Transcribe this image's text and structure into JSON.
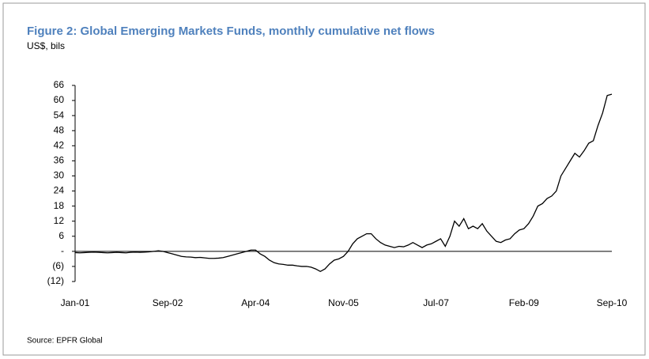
{
  "chart_data": {
    "type": "line",
    "title": "Figure 2: Global Emerging Markets Funds, monthly cumulative net flows",
    "subtitle": "US$, bils",
    "source": "Source: EPFR Global",
    "categories": [
      "Jan-01",
      null,
      null,
      null,
      null,
      null,
      null,
      null,
      null,
      null,
      null,
      null,
      null,
      null,
      null,
      null,
      null,
      null,
      null,
      null,
      "Sep-02",
      null,
      null,
      null,
      null,
      null,
      null,
      null,
      null,
      null,
      null,
      null,
      null,
      null,
      null,
      null,
      null,
      null,
      null,
      "Apr-04",
      null,
      null,
      null,
      null,
      null,
      null,
      null,
      null,
      null,
      null,
      null,
      null,
      null,
      null,
      null,
      null,
      null,
      null,
      "Nov-05",
      null,
      null,
      null,
      null,
      null,
      null,
      null,
      null,
      null,
      null,
      null,
      null,
      null,
      null,
      null,
      null,
      null,
      null,
      null,
      "Jul-07",
      null,
      null,
      null,
      null,
      null,
      null,
      null,
      null,
      null,
      null,
      null,
      null,
      null,
      null,
      null,
      null,
      null,
      null,
      "Feb-09",
      null,
      null,
      null,
      null,
      null,
      null,
      null,
      null,
      null,
      null,
      null,
      null,
      null,
      null,
      null,
      null,
      null,
      null,
      "Sep-10"
    ],
    "series": [
      {
        "name": "Cumulative net flows",
        "color": "#000000",
        "values": [
          -0.5,
          -0.6,
          -0.5,
          -0.4,
          -0.3,
          -0.4,
          -0.5,
          -0.6,
          -0.5,
          -0.4,
          -0.5,
          -0.6,
          -0.4,
          -0.3,
          -0.4,
          -0.3,
          -0.2,
          0,
          0.2,
          0,
          -0.5,
          -1,
          -1.5,
          -2,
          -2.2,
          -2.3,
          -2.5,
          -2.4,
          -2.6,
          -2.8,
          -2.8,
          -2.7,
          -2.5,
          -2,
          -1.5,
          -1,
          -0.5,
          0,
          0.5,
          0.5,
          -1,
          -2,
          -3.5,
          -4.5,
          -5,
          -5.2,
          -5.5,
          -5.5,
          -5.8,
          -6,
          -6,
          -6.3,
          -7,
          -8,
          -7,
          -5,
          -3.5,
          -3,
          -2,
          0,
          3,
          5,
          6,
          7,
          7,
          5,
          3.5,
          2.5,
          2,
          1.5,
          2,
          1.8,
          2.5,
          3.5,
          2.5,
          1.5,
          2.5,
          3,
          4,
          5,
          2,
          6,
          12,
          10,
          13,
          9,
          10,
          9,
          11,
          8,
          6,
          4,
          3.5,
          4.5,
          5,
          7,
          8.5,
          9,
          11,
          14,
          18,
          19,
          21,
          22,
          24,
          30,
          33,
          36,
          39,
          37.5,
          40,
          43,
          44,
          50,
          55,
          62,
          62.5
        ]
      }
    ],
    "ylim": [
      -12,
      66
    ],
    "yticks": [
      {
        "value": -12,
        "label": "(12)"
      },
      {
        "value": -6,
        "label": "(6)"
      },
      {
        "value": 0,
        "label": "-"
      },
      6,
      12,
      18,
      24,
      30,
      36,
      42,
      48,
      54,
      60,
      66
    ]
  }
}
